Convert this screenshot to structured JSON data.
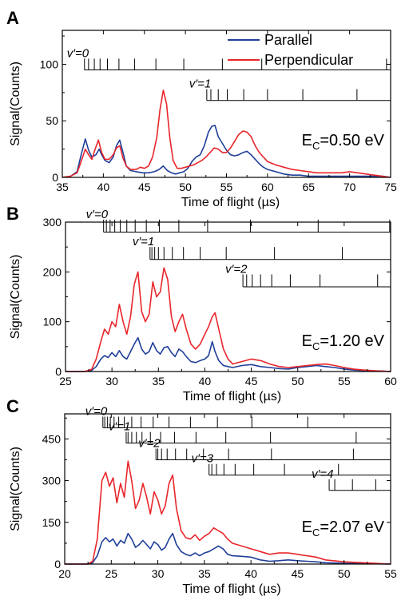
{
  "colors": {
    "parallel": "#1f3f99",
    "perpendicular": "#e8262b",
    "axis": "#000000"
  },
  "legend": [
    {
      "name": "Parallel",
      "color": "#1f3f99"
    },
    {
      "name": "Perpendicular",
      "color": "#e8262b"
    }
  ],
  "chart_data": [
    {
      "panel": "A",
      "type": "line",
      "xlabel": "Time of flight (µs)",
      "ylabel": "Signal(Counts)",
      "xlim": [
        35,
        75
      ],
      "ylim": [
        0,
        130
      ],
      "xticks": [
        35,
        40,
        45,
        50,
        55,
        60,
        65,
        70,
        75
      ],
      "yticks": [
        0,
        50,
        100
      ],
      "energy_label": {
        "prefix": "E",
        "sub": "C",
        "value": "=0.50 eV"
      },
      "legend_placement": "top-right",
      "series": [
        {
          "name": "Parallel",
          "color_key": "parallel",
          "x": [
            35,
            36,
            36.8,
            37.3,
            37.8,
            38.2,
            38.6,
            39.1,
            39.5,
            39.8,
            40.2,
            40.7,
            41.2,
            41.6,
            42,
            42.4,
            42.8,
            43.3,
            44,
            44.8,
            45.5,
            46.2,
            46.8,
            47.3,
            47.8,
            48.3,
            48.8,
            49.3,
            49.8,
            50.3,
            50.8,
            51.3,
            51.8,
            52.3,
            52.8,
            53.2,
            53.6,
            54,
            54.5,
            55,
            55.5,
            56,
            56.5,
            57,
            57.5,
            58,
            58.5,
            59,
            59.5,
            60,
            61,
            62,
            63,
            64,
            65,
            66,
            67,
            68,
            69,
            70,
            71,
            72,
            73,
            74,
            75
          ],
          "y": [
            0,
            1,
            5,
            20,
            34,
            24,
            18,
            20,
            25,
            20,
            15,
            13,
            18,
            28,
            33,
            22,
            10,
            6,
            5,
            4,
            4,
            5,
            7,
            10,
            6,
            4,
            3,
            4,
            5,
            8,
            14,
            18,
            20,
            28,
            40,
            45,
            46,
            36,
            30,
            24,
            20,
            19,
            20,
            22,
            23,
            20,
            16,
            12,
            9,
            7,
            5,
            3,
            2,
            2,
            1,
            1,
            1,
            1,
            1,
            1,
            1,
            1,
            1,
            1,
            0
          ]
        },
        {
          "name": "Perpendicular",
          "color_key": "perpendicular",
          "x": [
            35,
            36,
            36.8,
            37.3,
            37.8,
            38.2,
            38.6,
            39,
            39.4,
            39.8,
            40.2,
            40.7,
            41.2,
            41.6,
            42,
            42.4,
            42.8,
            43.3,
            44,
            44.5,
            45,
            45.5,
            46,
            46.5,
            46.9,
            47.3,
            47.7,
            48.1,
            48.5,
            49,
            49.5,
            50,
            50.5,
            51,
            51.5,
            52,
            52.5,
            53,
            53.5,
            54,
            54.5,
            55,
            55.5,
            56,
            56.5,
            57,
            57.5,
            58,
            58.5,
            59,
            59.5,
            60,
            61,
            62,
            63,
            64,
            65,
            66,
            67,
            68,
            69,
            70,
            71,
            72,
            73,
            74,
            75
          ],
          "y": [
            0,
            1,
            4,
            14,
            25,
            20,
            16,
            25,
            33,
            22,
            16,
            16,
            20,
            26,
            28,
            17,
            10,
            7,
            7,
            9,
            8,
            10,
            18,
            35,
            60,
            77,
            65,
            35,
            15,
            8,
            8,
            9,
            10,
            11,
            13,
            15,
            18,
            22,
            26,
            25,
            22,
            22,
            26,
            32,
            38,
            41,
            40,
            36,
            28,
            22,
            18,
            14,
            11,
            9,
            7,
            6,
            5,
            4,
            4,
            4,
            4,
            5,
            4,
            3,
            2,
            1,
            0
          ]
        }
      ],
      "progressions": [
        {
          "label": "v′=0",
          "y": 95,
          "ticks": [
            37.7,
            38.2,
            38.9,
            39.6,
            40.5,
            41.9,
            43.8,
            46.4,
            49.8,
            54.5,
            59.3,
            74.5
          ],
          "tick_height": 10
        },
        {
          "label": "v′=1",
          "y": 68,
          "ticks": [
            52.6,
            53.1,
            54,
            55.1,
            57.1,
            60,
            64.3,
            70.9,
            75
          ],
          "tick_height": 10
        }
      ]
    },
    {
      "panel": "B",
      "type": "line",
      "xlabel": "Time of flight (µs)",
      "ylabel": "Signal(Counts)",
      "xlim": [
        25,
        60
      ],
      "ylim": [
        0,
        300
      ],
      "xticks": [
        25,
        30,
        35,
        40,
        45,
        50,
        55,
        60
      ],
      "yticks": [
        0,
        100,
        200,
        300
      ],
      "energy_label": {
        "prefix": "E",
        "sub": "C",
        "value": "=1.20 eV"
      },
      "series": [
        {
          "name": "Parallel",
          "color_key": "parallel",
          "x": [
            25,
            27,
            27.8,
            28.3,
            28.8,
            29.2,
            29.6,
            30,
            30.4,
            30.8,
            31.2,
            31.6,
            32,
            32.4,
            32.8,
            33.2,
            33.6,
            34,
            34.4,
            34.8,
            35.2,
            35.6,
            36,
            36.4,
            36.8,
            37.2,
            37.6,
            38,
            38.5,
            39,
            39.5,
            40,
            40.4,
            40.8,
            41.1,
            41.5,
            42,
            42.5,
            43,
            44,
            45,
            46,
            47,
            48,
            49,
            50,
            51,
            52,
            53,
            54,
            55,
            56,
            57,
            58,
            59,
            60
          ],
          "y": [
            0,
            0,
            2,
            10,
            25,
            32,
            28,
            38,
            30,
            42,
            30,
            25,
            40,
            55,
            68,
            45,
            35,
            40,
            58,
            42,
            35,
            48,
            50,
            38,
            30,
            45,
            40,
            30,
            20,
            18,
            22,
            25,
            32,
            60,
            40,
            22,
            12,
            10,
            8,
            12,
            14,
            10,
            8,
            6,
            5,
            8,
            10,
            12,
            10,
            8,
            5,
            3,
            2,
            1,
            1,
            0
          ]
        },
        {
          "name": "Perpendicular",
          "color_key": "perpendicular",
          "x": [
            25,
            27,
            27.8,
            28.3,
            28.8,
            29.2,
            29.6,
            30,
            30.4,
            30.8,
            31.2,
            31.6,
            32,
            32.4,
            32.8,
            33.2,
            33.6,
            34,
            34.4,
            34.8,
            35.2,
            35.6,
            36,
            36.4,
            36.8,
            37.2,
            37.6,
            38,
            38.5,
            39,
            39.5,
            40,
            40.4,
            40.8,
            41.1,
            41.5,
            42,
            42.5,
            43,
            44,
            45,
            46,
            47,
            48,
            49,
            50,
            51,
            52,
            53,
            54,
            55,
            56,
            57,
            58,
            59,
            60
          ],
          "y": [
            0,
            0,
            4,
            25,
            60,
            85,
            75,
            100,
            90,
            135,
            100,
            75,
            110,
            175,
            200,
            120,
            100,
            115,
            180,
            150,
            160,
            208,
            185,
            110,
            80,
            100,
            115,
            85,
            55,
            45,
            55,
            75,
            90,
            110,
            118,
            85,
            45,
            25,
            15,
            20,
            25,
            22,
            15,
            10,
            8,
            10,
            12,
            14,
            15,
            12,
            8,
            5,
            3,
            2,
            1,
            0
          ]
        }
      ],
      "progressions": [
        {
          "label": "v′=0",
          "y": 280,
          "ticks": [
            29.1,
            29.4,
            29.8,
            30.3,
            30.9,
            31.6,
            32.5,
            33.7,
            35.1,
            37.2,
            40.3,
            44.9,
            52.2,
            59.9
          ],
          "tick_height": 25
        },
        {
          "label": "v′=1",
          "y": 225,
          "ticks": [
            34.1,
            34.3,
            34.6,
            35,
            35.6,
            36.5,
            37.7,
            39.5,
            42.3,
            47.5,
            54.8
          ],
          "tick_height": 25
        },
        {
          "label": "v′=2",
          "y": 170,
          "ticks": [
            44.1,
            44.5,
            45.1,
            46,
            47.2,
            49.2,
            52.4,
            58.6
          ],
          "tick_height": 25
        }
      ]
    },
    {
      "panel": "C",
      "type": "line",
      "xlabel": "Time of flight (µs)",
      "ylabel": "Signal(Counts)",
      "xlim": [
        20,
        55
      ],
      "ylim": [
        0,
        540
      ],
      "xticks": [
        20,
        25,
        30,
        35,
        40,
        45,
        50,
        55
      ],
      "yticks": [
        0,
        150,
        300,
        450
      ],
      "energy_label": {
        "prefix": "E",
        "sub": "C",
        "value": "=2.07 eV"
      },
      "series": [
        {
          "name": "Parallel",
          "color_key": "parallel",
          "x": [
            20,
            22.5,
            23,
            23.5,
            24,
            24.4,
            24.8,
            25.2,
            25.6,
            26,
            26.4,
            26.8,
            27.2,
            27.6,
            28,
            28.4,
            28.8,
            29.2,
            29.6,
            30,
            30.4,
            30.8,
            31.2,
            31.6,
            32,
            32.5,
            33,
            33.5,
            34,
            34.5,
            35,
            35.5,
            36,
            36.5,
            37,
            37.5,
            38,
            39,
            40,
            41,
            42,
            43,
            44,
            45,
            46,
            47,
            48,
            50,
            52,
            55
          ],
          "y": [
            0,
            0,
            5,
            30,
            80,
            95,
            80,
            90,
            65,
            85,
            75,
            110,
            90,
            60,
            70,
            85,
            70,
            55,
            80,
            70,
            50,
            60,
            90,
            110,
            70,
            45,
            35,
            30,
            40,
            30,
            40,
            45,
            55,
            65,
            55,
            35,
            30,
            28,
            25,
            15,
            10,
            12,
            15,
            12,
            10,
            8,
            5,
            3,
            2,
            0
          ]
        },
        {
          "name": "Perpendicular",
          "color_key": "perpendicular",
          "x": [
            20,
            22.5,
            23,
            23.5,
            24,
            24.4,
            24.8,
            25.2,
            25.6,
            26,
            26.4,
            26.8,
            27.2,
            27.6,
            28,
            28.4,
            28.8,
            29.2,
            29.6,
            30,
            30.4,
            30.8,
            31.2,
            31.6,
            32,
            32.5,
            33,
            33.5,
            34,
            34.5,
            35,
            35.5,
            36,
            36.5,
            37,
            37.5,
            38,
            39,
            40,
            41,
            42,
            43,
            44,
            45,
            46,
            47,
            48,
            50,
            52,
            55
          ],
          "y": [
            0,
            0,
            10,
            90,
            300,
            330,
            280,
            310,
            220,
            290,
            240,
            370,
            300,
            200,
            230,
            290,
            240,
            180,
            260,
            230,
            180,
            210,
            290,
            320,
            200,
            120,
            95,
            90,
            105,
            85,
            100,
            110,
            130,
            120,
            110,
            90,
            75,
            65,
            55,
            45,
            35,
            40,
            40,
            35,
            30,
            25,
            15,
            8,
            5,
            0
          ]
        }
      ],
      "progressions": [
        {
          "label": "v′=0",
          "y": 490,
          "ticks": [
            24.1,
            24.3,
            24.6,
            24.9,
            25.3,
            25.8,
            26.4,
            27.2,
            28.2,
            29.5,
            31.2,
            33.5,
            36.4,
            40.1,
            46.1
          ],
          "tick_height": 40
        },
        {
          "label": "v′=1",
          "y": 435,
          "ticks": [
            26.6,
            26.8,
            27.2,
            27.7,
            28.3,
            29.2,
            30.3,
            31.8,
            34.1,
            37.3,
            42.1,
            51.3
          ],
          "tick_height": 40
        },
        {
          "label": "v′=2",
          "y": 375,
          "ticks": [
            29.8,
            30,
            30.4,
            31,
            31.9,
            33.1,
            34.9,
            37.6,
            42.2,
            51
          ],
          "tick_height": 40
        },
        {
          "label": "v′=3",
          "y": 320,
          "ticks": [
            35.5,
            35.8,
            36.3,
            37.1,
            38.3,
            40.3,
            43.6,
            49.4
          ],
          "tick_height": 40
        },
        {
          "label": "v′=4",
          "y": 265,
          "ticks": [
            48.4,
            49,
            50.9,
            53.4
          ],
          "tick_height": 40
        }
      ]
    }
  ]
}
